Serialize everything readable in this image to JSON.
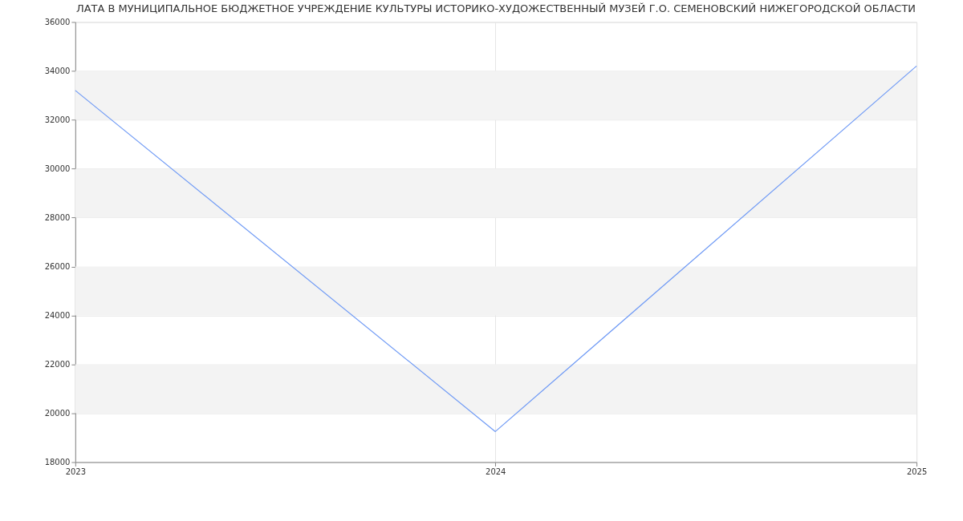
{
  "chart_data": {
    "type": "line",
    "title": "ЛАТА В МУНИЦИПАЛЬНОЕ БЮДЖЕТНОЕ УЧРЕЖДЕНИЕ КУЛЬТУРЫ ИСТОРИКО-ХУДОЖЕСТВЕННЫЙ МУЗЕЙ Г.О. СЕМЕНОВСКИЙ НИЖЕГОРОДСКОЙ ОБЛАСТИ",
    "x": [
      "2023",
      "2024",
      "2025"
    ],
    "series": [
      {
        "color": "#6f9af5",
        "values": [
          33200,
          19250,
          34200
        ]
      }
    ],
    "xlim": [
      "2023",
      "2025"
    ],
    "xticks": [
      "2023",
      "2024",
      "2025"
    ],
    "ylim": [
      18000,
      36000
    ],
    "yticks": [
      18000,
      20000,
      22000,
      24000,
      26000,
      28000,
      30000,
      32000,
      34000,
      36000
    ],
    "bands": [
      {
        "axis": "y",
        "from": 20000,
        "to": 22000,
        "color": "#f3f3f3"
      },
      {
        "axis": "y",
        "from": 24000,
        "to": 26000,
        "color": "#f3f3f3"
      },
      {
        "axis": "y",
        "from": 28000,
        "to": 30000,
        "color": "#f3f3f3"
      },
      {
        "axis": "y",
        "from": 32000,
        "to": 34000,
        "color": "#f3f3f3"
      }
    ],
    "grid": true,
    "legend": false,
    "marker": "none",
    "line_style": "solid"
  }
}
